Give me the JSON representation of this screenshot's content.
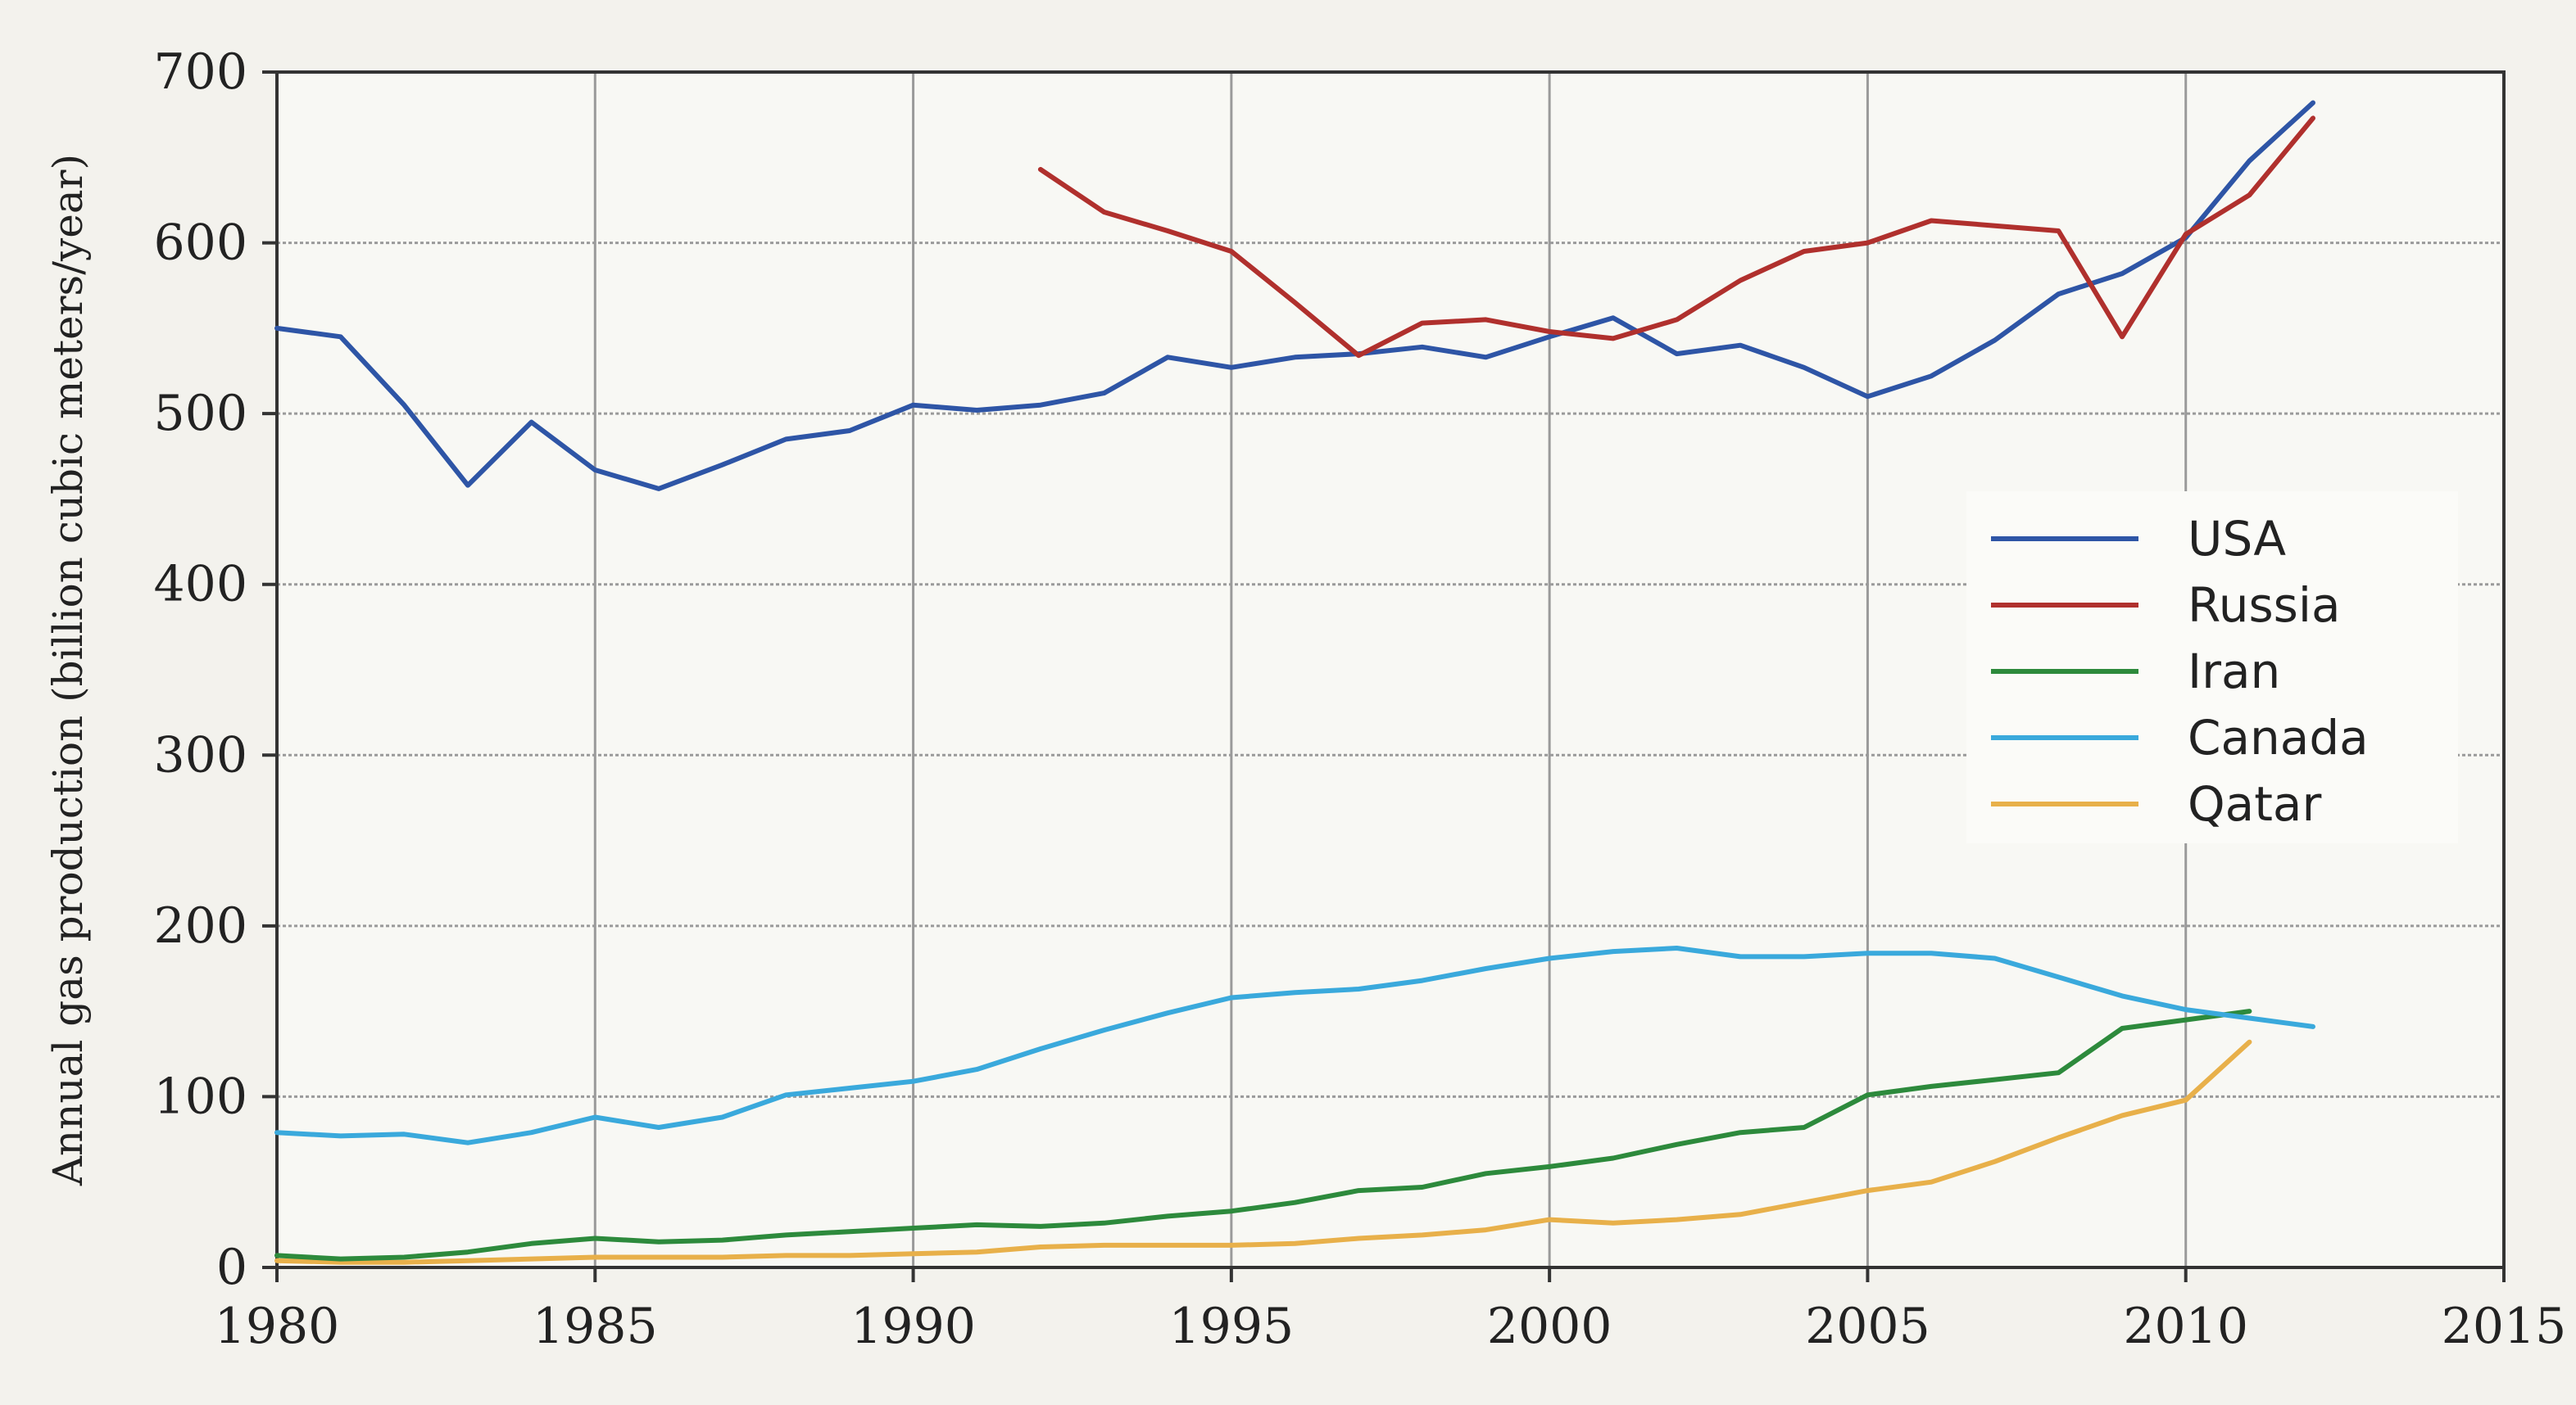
{
  "chart_data": {
    "type": "line",
    "title": "",
    "xlabel": "",
    "ylabel": "Annual gas production (billion cubic meters/year)",
    "xlim": [
      1980,
      2015
    ],
    "ylim": [
      0,
      700
    ],
    "xticks": [
      "1980",
      "1985",
      "1990",
      "1995",
      "2000",
      "2005",
      "2010",
      "2015"
    ],
    "yticks": [
      "0",
      "100",
      "200",
      "300",
      "400",
      "500",
      "600",
      "700"
    ],
    "grid": true,
    "legend_position": "right",
    "series": [
      {
        "name": "USA",
        "color": "#2e55a6",
        "x": [
          1980,
          1981,
          1982,
          1983,
          1984,
          1985,
          1986,
          1987,
          1988,
          1989,
          1990,
          1991,
          1992,
          1993,
          1994,
          1995,
          1996,
          1997,
          1998,
          1999,
          2000,
          2001,
          2002,
          2003,
          2004,
          2005,
          2006,
          2007,
          2008,
          2009,
          2010,
          2011,
          2012
        ],
        "values": [
          550,
          545,
          505,
          458,
          495,
          467,
          456,
          470,
          485,
          490,
          505,
          502,
          505,
          512,
          533,
          527,
          533,
          535,
          539,
          533,
          545,
          556,
          535,
          540,
          527,
          510,
          522,
          543,
          570,
          582,
          603,
          648,
          682
        ]
      },
      {
        "name": "Russia",
        "color": "#b0302d",
        "x": [
          1992,
          1993,
          1994,
          1995,
          1996,
          1997,
          1998,
          1999,
          2000,
          2001,
          2002,
          2003,
          2004,
          2005,
          2006,
          2007,
          2008,
          2009,
          2010,
          2011,
          2012
        ],
        "values": [
          643,
          618,
          607,
          595,
          565,
          534,
          553,
          555,
          548,
          544,
          555,
          578,
          595,
          600,
          613,
          610,
          607,
          545,
          605,
          628,
          673
        ]
      },
      {
        "name": "Iran",
        "color": "#2d8a3c",
        "x": [
          1980,
          1981,
          1982,
          1983,
          1984,
          1985,
          1986,
          1987,
          1988,
          1989,
          1990,
          1991,
          1992,
          1993,
          1994,
          1995,
          1996,
          1997,
          1998,
          1999,
          2000,
          2001,
          2002,
          2003,
          2004,
          2005,
          2006,
          2007,
          2008,
          2009,
          2010,
          2011
        ],
        "values": [
          7,
          5,
          6,
          9,
          14,
          17,
          15,
          16,
          19,
          21,
          23,
          25,
          24,
          26,
          30,
          33,
          38,
          45,
          47,
          55,
          59,
          64,
          72,
          79,
          82,
          101,
          106,
          110,
          114,
          140,
          145,
          150
        ]
      },
      {
        "name": "Canada",
        "color": "#3aa9dc",
        "x": [
          1980,
          1981,
          1982,
          1983,
          1984,
          1985,
          1986,
          1987,
          1988,
          1989,
          1990,
          1991,
          1992,
          1993,
          1994,
          1995,
          1996,
          1997,
          1998,
          1999,
          2000,
          2001,
          2002,
          2003,
          2004,
          2005,
          2006,
          2007,
          2008,
          2009,
          2010,
          2011,
          2012
        ],
        "values": [
          79,
          77,
          78,
          73,
          79,
          88,
          82,
          88,
          101,
          105,
          109,
          116,
          128,
          139,
          149,
          158,
          161,
          163,
          168,
          175,
          181,
          185,
          187,
          182,
          182,
          184,
          184,
          181,
          170,
          159,
          151,
          146,
          141
        ]
      },
      {
        "name": "Qatar",
        "color": "#e8b04a",
        "x": [
          1980,
          1981,
          1982,
          1983,
          1984,
          1985,
          1986,
          1987,
          1988,
          1989,
          1990,
          1991,
          1992,
          1993,
          1994,
          1995,
          1996,
          1997,
          1998,
          1999,
          2000,
          2001,
          2002,
          2003,
          2004,
          2005,
          2006,
          2007,
          2008,
          2009,
          2010,
          2011
        ],
        "values": [
          4,
          3,
          3,
          4,
          5,
          6,
          6,
          6,
          7,
          7,
          8,
          9,
          12,
          13,
          13,
          13,
          14,
          17,
          19,
          22,
          28,
          26,
          28,
          31,
          38,
          45,
          50,
          62,
          76,
          89,
          98,
          132
        ]
      }
    ]
  }
}
